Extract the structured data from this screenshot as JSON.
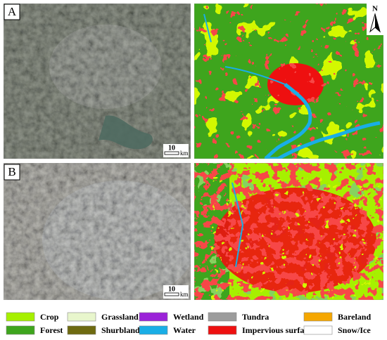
{
  "panels": [
    {
      "label": "A",
      "scale": {
        "value": "10",
        "unit": "km"
      }
    },
    {
      "label": "B",
      "scale": {
        "value": "10",
        "unit": "km"
      }
    }
  ],
  "north": "N",
  "legend": [
    {
      "label": "Crop",
      "color": "#a6f000"
    },
    {
      "label": "Forest",
      "color": "#3ea51d"
    },
    {
      "label": "Grassland",
      "color": "#e8f6cc"
    },
    {
      "label": "Shurbland",
      "color": "#6e6a10"
    },
    {
      "label": "Wetland",
      "color": "#9b22d8"
    },
    {
      "label": "Water",
      "color": "#19aee6"
    },
    {
      "label": "Tundra",
      "color": "#9c9c9c"
    },
    {
      "label": "Impervious surface",
      "color": "#ee1010"
    },
    {
      "label": "Bareland",
      "color": "#f5a700"
    },
    {
      "label": "Snow/Ice",
      "color": "#ffffff"
    }
  ]
}
